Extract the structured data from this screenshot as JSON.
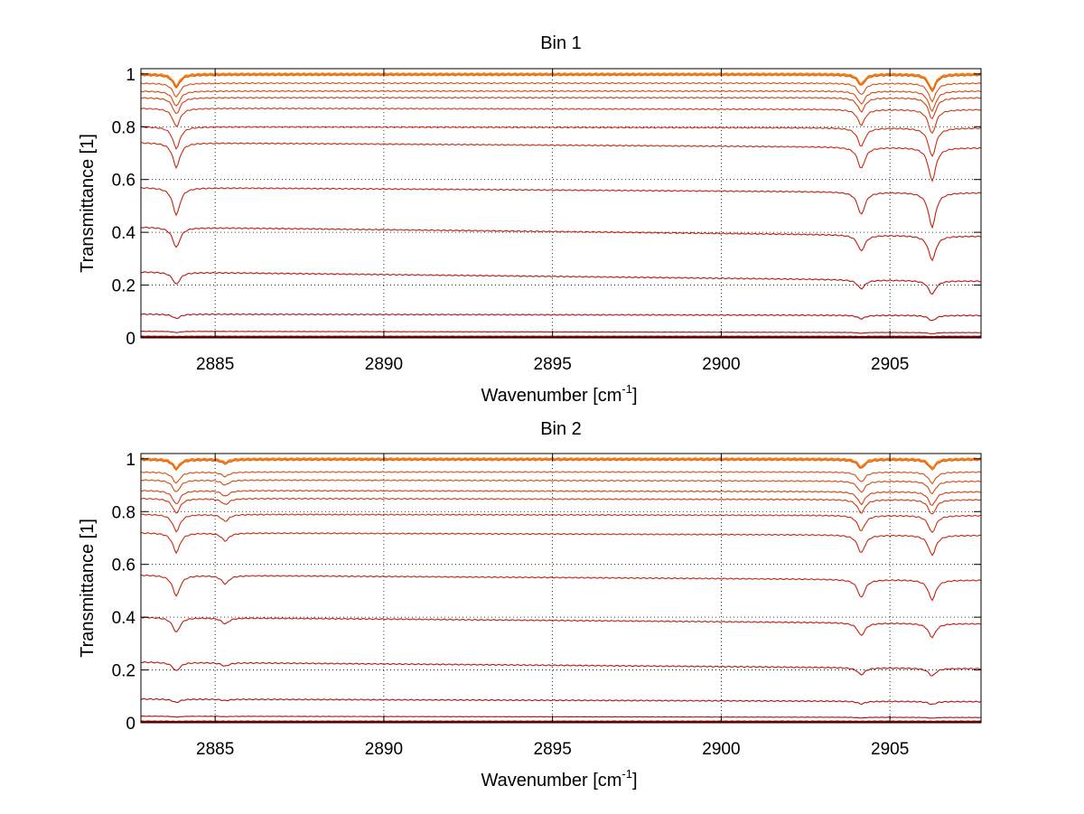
{
  "figure": {
    "background": "#ffffff"
  },
  "chart_data": [
    {
      "type": "line",
      "title": "Bin 1",
      "xlabel_main": "Wavenumber [cm",
      "xlabel_sup": "-1",
      "xlabel_tail": "]",
      "ylabel": "Transmittance [1]",
      "xlim": [
        2882.8,
        2907.7
      ],
      "ylim": [
        0,
        1.02
      ],
      "xticks": [
        2885,
        2890,
        2895,
        2900,
        2905
      ],
      "yticks": [
        0,
        0.2,
        0.4,
        0.6,
        0.8,
        1
      ],
      "ytick_labels": [
        "0",
        "0.2",
        "0.4",
        "0.6",
        "0.8",
        "1"
      ],
      "grid": true,
      "grid_style": "dotted",
      "absorption_lines": [
        {
          "center": 2883.85,
          "rel_depth": 0.13
        },
        {
          "center": 2904.15,
          "rel_depth": 0.11
        },
        {
          "center": 2906.25,
          "rel_depth": 0.17
        }
      ],
      "series": [
        {
          "baseline_start": 1.0,
          "baseline_end": 1.0,
          "color": "#f07f16"
        },
        {
          "baseline_start": 0.995,
          "baseline_end": 0.995,
          "color": "#e06010"
        },
        {
          "baseline_start": 0.965,
          "baseline_end": 0.965,
          "color": "#d85010"
        },
        {
          "baseline_start": 0.935,
          "baseline_end": 0.935,
          "color": "#d54a10"
        },
        {
          "baseline_start": 0.91,
          "baseline_end": 0.91,
          "color": "#d24010"
        },
        {
          "baseline_start": 0.87,
          "baseline_end": 0.865,
          "color": "#cf3812"
        },
        {
          "baseline_start": 0.8,
          "baseline_end": 0.795,
          "color": "#cc3010"
        },
        {
          "baseline_start": 0.74,
          "baseline_end": 0.72,
          "color": "#c82810"
        },
        {
          "baseline_start": 0.57,
          "baseline_end": 0.55,
          "color": "#c42210"
        },
        {
          "baseline_start": 0.42,
          "baseline_end": 0.385,
          "color": "#c01c10"
        },
        {
          "baseline_start": 0.25,
          "baseline_end": 0.215,
          "color": "#bb1610"
        },
        {
          "baseline_start": 0.09,
          "baseline_end": 0.085,
          "color": "#b51010"
        },
        {
          "baseline_start": 0.025,
          "baseline_end": 0.02,
          "color": "#aa0c0c"
        },
        {
          "baseline_start": 0.004,
          "baseline_end": 0.004,
          "color": "#8b0000"
        }
      ]
    },
    {
      "type": "line",
      "title": "Bin 2",
      "xlabel_main": "Wavenumber [cm",
      "xlabel_sup": "-1",
      "xlabel_tail": "]",
      "ylabel": "Transmittance [1]",
      "xlim": [
        2882.8,
        2907.7
      ],
      "ylim": [
        0,
        1.02
      ],
      "xticks": [
        2885,
        2890,
        2895,
        2900,
        2905
      ],
      "yticks": [
        0,
        0.2,
        0.4,
        0.6,
        0.8,
        1
      ],
      "ytick_labels": [
        "0",
        "0.2",
        "0.4",
        "0.6",
        "0.8",
        "1"
      ],
      "grid": true,
      "grid_style": "dotted",
      "absorption_lines": [
        {
          "center": 2883.85,
          "rel_depth": 0.1
        },
        {
          "center": 2885.3,
          "rel_depth": 0.04
        },
        {
          "center": 2904.15,
          "rel_depth": 0.09
        },
        {
          "center": 2906.25,
          "rel_depth": 0.1
        }
      ],
      "series": [
        {
          "baseline_start": 1.0,
          "baseline_end": 1.0,
          "color": "#f07f16"
        },
        {
          "baseline_start": 0.995,
          "baseline_end": 0.995,
          "color": "#e06010"
        },
        {
          "baseline_start": 0.95,
          "baseline_end": 0.95,
          "color": "#d85010"
        },
        {
          "baseline_start": 0.92,
          "baseline_end": 0.915,
          "color": "#d54a10"
        },
        {
          "baseline_start": 0.88,
          "baseline_end": 0.875,
          "color": "#d24010"
        },
        {
          "baseline_start": 0.85,
          "baseline_end": 0.845,
          "color": "#cf3812"
        },
        {
          "baseline_start": 0.79,
          "baseline_end": 0.785,
          "color": "#cc3010"
        },
        {
          "baseline_start": 0.72,
          "baseline_end": 0.71,
          "color": "#c82810"
        },
        {
          "baseline_start": 0.56,
          "baseline_end": 0.54,
          "color": "#c42210"
        },
        {
          "baseline_start": 0.4,
          "baseline_end": 0.375,
          "color": "#c01c10"
        },
        {
          "baseline_start": 0.23,
          "baseline_end": 0.205,
          "color": "#bb1610"
        },
        {
          "baseline_start": 0.09,
          "baseline_end": 0.08,
          "color": "#b51010"
        },
        {
          "baseline_start": 0.025,
          "baseline_end": 0.02,
          "color": "#aa0c0c"
        },
        {
          "baseline_start": 0.004,
          "baseline_end": 0.004,
          "color": "#8b0000"
        }
      ]
    }
  ]
}
